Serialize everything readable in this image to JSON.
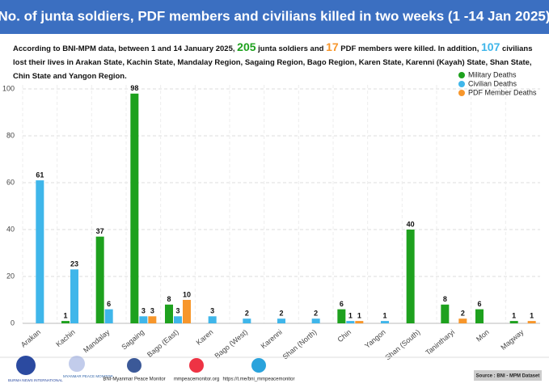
{
  "chart_data": {
    "type": "bar",
    "title": "No. of junta soldiers, PDF members and civilians killed in two weeks   (1 -14 Jan 2025)",
    "subtitle_parts": [
      "According to BNI-MPM data, between 1 and 14 January 2025, ",
      "205",
      " junta soldiers and ",
      "17",
      " PDF members were killed. In addition, ",
      "107",
      " civilians lost their lives in Arakan State, Kachin State, Mandalay Region, Sagaing Region, Bago Region, Karen State, Karenni (Kayah) State, Shan State, Chin State and Yangon Region."
    ],
    "categories": [
      "Arakan",
      "Kachin",
      "Mandalay",
      "Sagaing",
      "Bago (East)",
      "Karen",
      "Bago (West)",
      "Karenni",
      "Shan (North)",
      "Chin",
      "Yangon",
      "Shan (South)",
      "Tanintharyi",
      "Mon",
      "Magway"
    ],
    "series": [
      {
        "name": "Military Deaths",
        "color": "#1ea11e",
        "values": [
          null,
          1,
          37,
          98,
          8,
          null,
          null,
          null,
          null,
          6,
          null,
          40,
          8,
          6,
          1
        ]
      },
      {
        "name": "Civilian Deaths",
        "color": "#3fb6ea",
        "values": [
          61,
          23,
          6,
          3,
          3,
          3,
          2,
          2,
          2,
          1,
          1,
          null,
          null,
          null,
          null
        ]
      },
      {
        "name": "PDF Member Deaths",
        "color": "#f7962b",
        "values": [
          null,
          null,
          null,
          3,
          10,
          null,
          null,
          null,
          null,
          1,
          null,
          null,
          2,
          null,
          1
        ]
      }
    ],
    "ylim": [
      0,
      100
    ],
    "yticks": [
      0,
      20,
      40,
      60,
      80,
      100
    ],
    "grid": true,
    "legend": "top-right"
  },
  "footer": {
    "logo_1": "BURMA NEWS INTERNATIONAL",
    "logo_2": "MYANMAR PEACE MONITOR",
    "facebook": "BNI-Myanmar Peace Monitor",
    "website": "mmpeacemonitor.org",
    "telegram": "https://t.me/bni_mmpeacemonitor",
    "source": "Source : BNI - MPM Dataset"
  }
}
